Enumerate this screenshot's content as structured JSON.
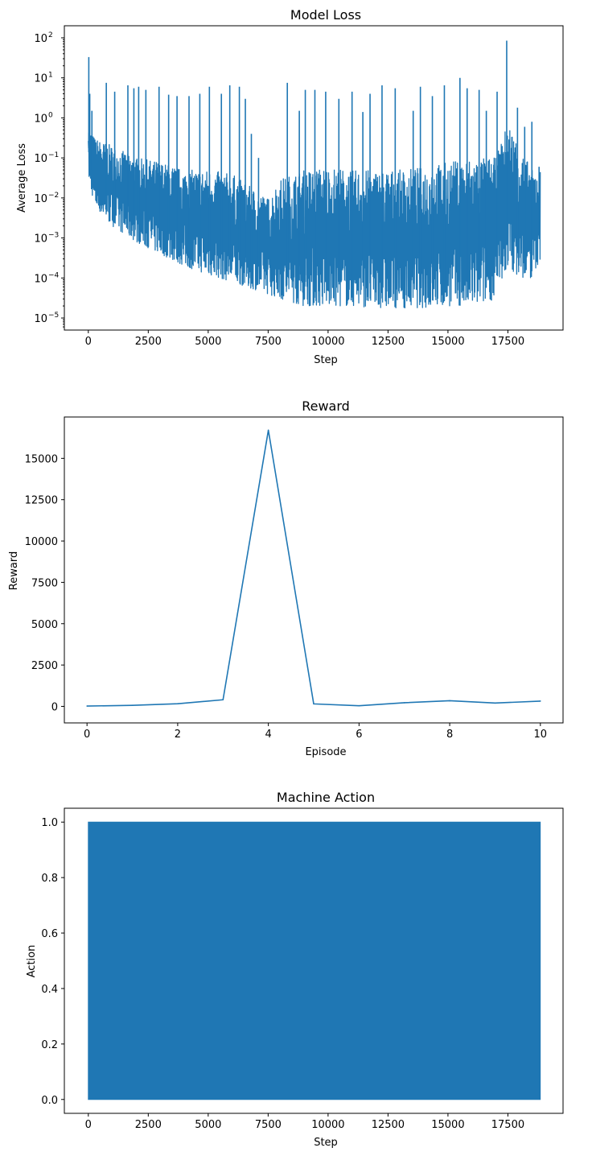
{
  "chart_data": [
    {
      "type": "line",
      "title": "Model Loss",
      "xlabel": "Step",
      "ylabel": "Average Loss",
      "xlim": [
        -1000,
        19800
      ],
      "ylim": [
        5e-06,
        200
      ],
      "yscale": "log",
      "grid": false,
      "color": "#1f77b4",
      "xticks": [
        0,
        2500,
        5000,
        7500,
        10000,
        12500,
        15000,
        17500
      ],
      "xtick_labels": [
        "0",
        "2500",
        "5000",
        "7500",
        "10000",
        "12500",
        "15000",
        "17500"
      ],
      "yticks": [
        1e-05,
        0.0001,
        0.001,
        0.01,
        0.1,
        1,
        10,
        100
      ],
      "ytick_labels": [
        "10",
        "10",
        "10",
        "10",
        "10",
        "10",
        "10",
        "10"
      ],
      "ytick_exponents": [
        "−5",
        "−4",
        "−3",
        "−2",
        "−1",
        "0",
        "1",
        "2"
      ],
      "series": [
        {
          "envelope_x": [
            0,
            50,
            300,
            1000,
            2000,
            3000,
            4000,
            5000,
            6000,
            7000,
            7500,
            8000,
            9000,
            10000,
            11000,
            12000,
            13000,
            14000,
            15000,
            16000,
            17000,
            17500,
            18000,
            18500,
            18850
          ],
          "envelope_low": [
            0.05,
            0.02,
            0.006,
            0.002,
            0.0008,
            0.0004,
            0.0002,
            0.00012,
            8e-05,
            5e-05,
            4e-05,
            3e-05,
            2e-05,
            2e-05,
            2e-05,
            1.8e-05,
            1.8e-05,
            1.8e-05,
            2e-05,
            2e-05,
            3e-05,
            0.0002,
            0.0001,
            0.0001,
            0.0003
          ],
          "envelope_high": [
            2,
            0.5,
            0.3,
            0.2,
            0.1,
            0.08,
            0.05,
            0.05,
            0.04,
            0.015,
            0.01,
            0.03,
            0.05,
            0.06,
            0.05,
            0.05,
            0.05,
            0.06,
            0.08,
            0.1,
            0.1,
            0.8,
            0.2,
            0.05,
            0.05
          ],
          "spikes": [
            {
              "x": 20,
              "y": 33
            },
            {
              "x": 60,
              "y": 4
            },
            {
              "x": 150,
              "y": 1.5
            },
            {
              "x": 750,
              "y": 7.5
            },
            {
              "x": 1100,
              "y": 4.5
            },
            {
              "x": 1650,
              "y": 6.5
            },
            {
              "x": 1900,
              "y": 5.5
            },
            {
              "x": 2100,
              "y": 6
            },
            {
              "x": 2400,
              "y": 5
            },
            {
              "x": 2950,
              "y": 6
            },
            {
              "x": 3350,
              "y": 3.8
            },
            {
              "x": 3700,
              "y": 3.5
            },
            {
              "x": 4200,
              "y": 3.5
            },
            {
              "x": 4650,
              "y": 4
            },
            {
              "x": 5050,
              "y": 6
            },
            {
              "x": 5550,
              "y": 4
            },
            {
              "x": 5900,
              "y": 6.5
            },
            {
              "x": 6300,
              "y": 6
            },
            {
              "x": 6550,
              "y": 3
            },
            {
              "x": 6800,
              "y": 0.4
            },
            {
              "x": 7100,
              "y": 0.1
            },
            {
              "x": 8300,
              "y": 7.5
            },
            {
              "x": 8800,
              "y": 1.5
            },
            {
              "x": 9050,
              "y": 5
            },
            {
              "x": 9450,
              "y": 5
            },
            {
              "x": 9900,
              "y": 4.5
            },
            {
              "x": 10450,
              "y": 3
            },
            {
              "x": 11000,
              "y": 4.5
            },
            {
              "x": 11450,
              "y": 1.4
            },
            {
              "x": 11750,
              "y": 4
            },
            {
              "x": 12250,
              "y": 6.5
            },
            {
              "x": 12800,
              "y": 5.5
            },
            {
              "x": 13550,
              "y": 1.5
            },
            {
              "x": 13850,
              "y": 6
            },
            {
              "x": 14350,
              "y": 3.5
            },
            {
              "x": 14850,
              "y": 6.5
            },
            {
              "x": 15500,
              "y": 10
            },
            {
              "x": 15800,
              "y": 5.5
            },
            {
              "x": 16300,
              "y": 5
            },
            {
              "x": 16600,
              "y": 1.5
            },
            {
              "x": 17050,
              "y": 4.5
            },
            {
              "x": 17450,
              "y": 85
            },
            {
              "x": 17900,
              "y": 1.8
            },
            {
              "x": 18200,
              "y": 0.6
            },
            {
              "x": 18500,
              "y": 0.8
            },
            {
              "x": 18800,
              "y": 0.06
            }
          ]
        }
      ]
    },
    {
      "type": "line",
      "title": "Reward",
      "xlabel": "Episode",
      "ylabel": "Reward",
      "xlim": [
        -0.5,
        10.5
      ],
      "ylim": [
        -1000,
        17500
      ],
      "grid": false,
      "color": "#1f77b4",
      "xticks": [
        0,
        2,
        4,
        6,
        8,
        10
      ],
      "xtick_labels": [
        "0",
        "2",
        "4",
        "6",
        "8",
        "10"
      ],
      "yticks": [
        0,
        2500,
        5000,
        7500,
        10000,
        12500,
        15000
      ],
      "ytick_labels": [
        "0",
        "2500",
        "5000",
        "7500",
        "10000",
        "12500",
        "15000"
      ],
      "series": [
        {
          "x": [
            0,
            1,
            2,
            3,
            4,
            5,
            6,
            7,
            8,
            9,
            10
          ],
          "values": [
            20,
            60,
            160,
            400,
            16700,
            150,
            40,
            220,
            340,
            200,
            320
          ]
        }
      ]
    },
    {
      "type": "line",
      "title": "Machine Action",
      "xlabel": "Step",
      "ylabel": "Action",
      "xlim": [
        -1000,
        19800
      ],
      "ylim": [
        -0.05,
        1.05
      ],
      "grid": false,
      "color": "#1f77b4",
      "xticks": [
        0,
        2500,
        5000,
        7500,
        10000,
        12500,
        15000,
        17500
      ],
      "xtick_labels": [
        "0",
        "2500",
        "5000",
        "7500",
        "10000",
        "12500",
        "15000",
        "17500"
      ],
      "yticks": [
        0.0,
        0.2,
        0.4,
        0.6,
        0.8,
        1.0
      ],
      "ytick_labels": [
        "0.0",
        "0.2",
        "0.4",
        "0.6",
        "0.8",
        "1.0"
      ],
      "series": [
        {
          "x_range": [
            0,
            18850
          ],
          "values_min": 0,
          "values_max": 1
        }
      ]
    }
  ]
}
